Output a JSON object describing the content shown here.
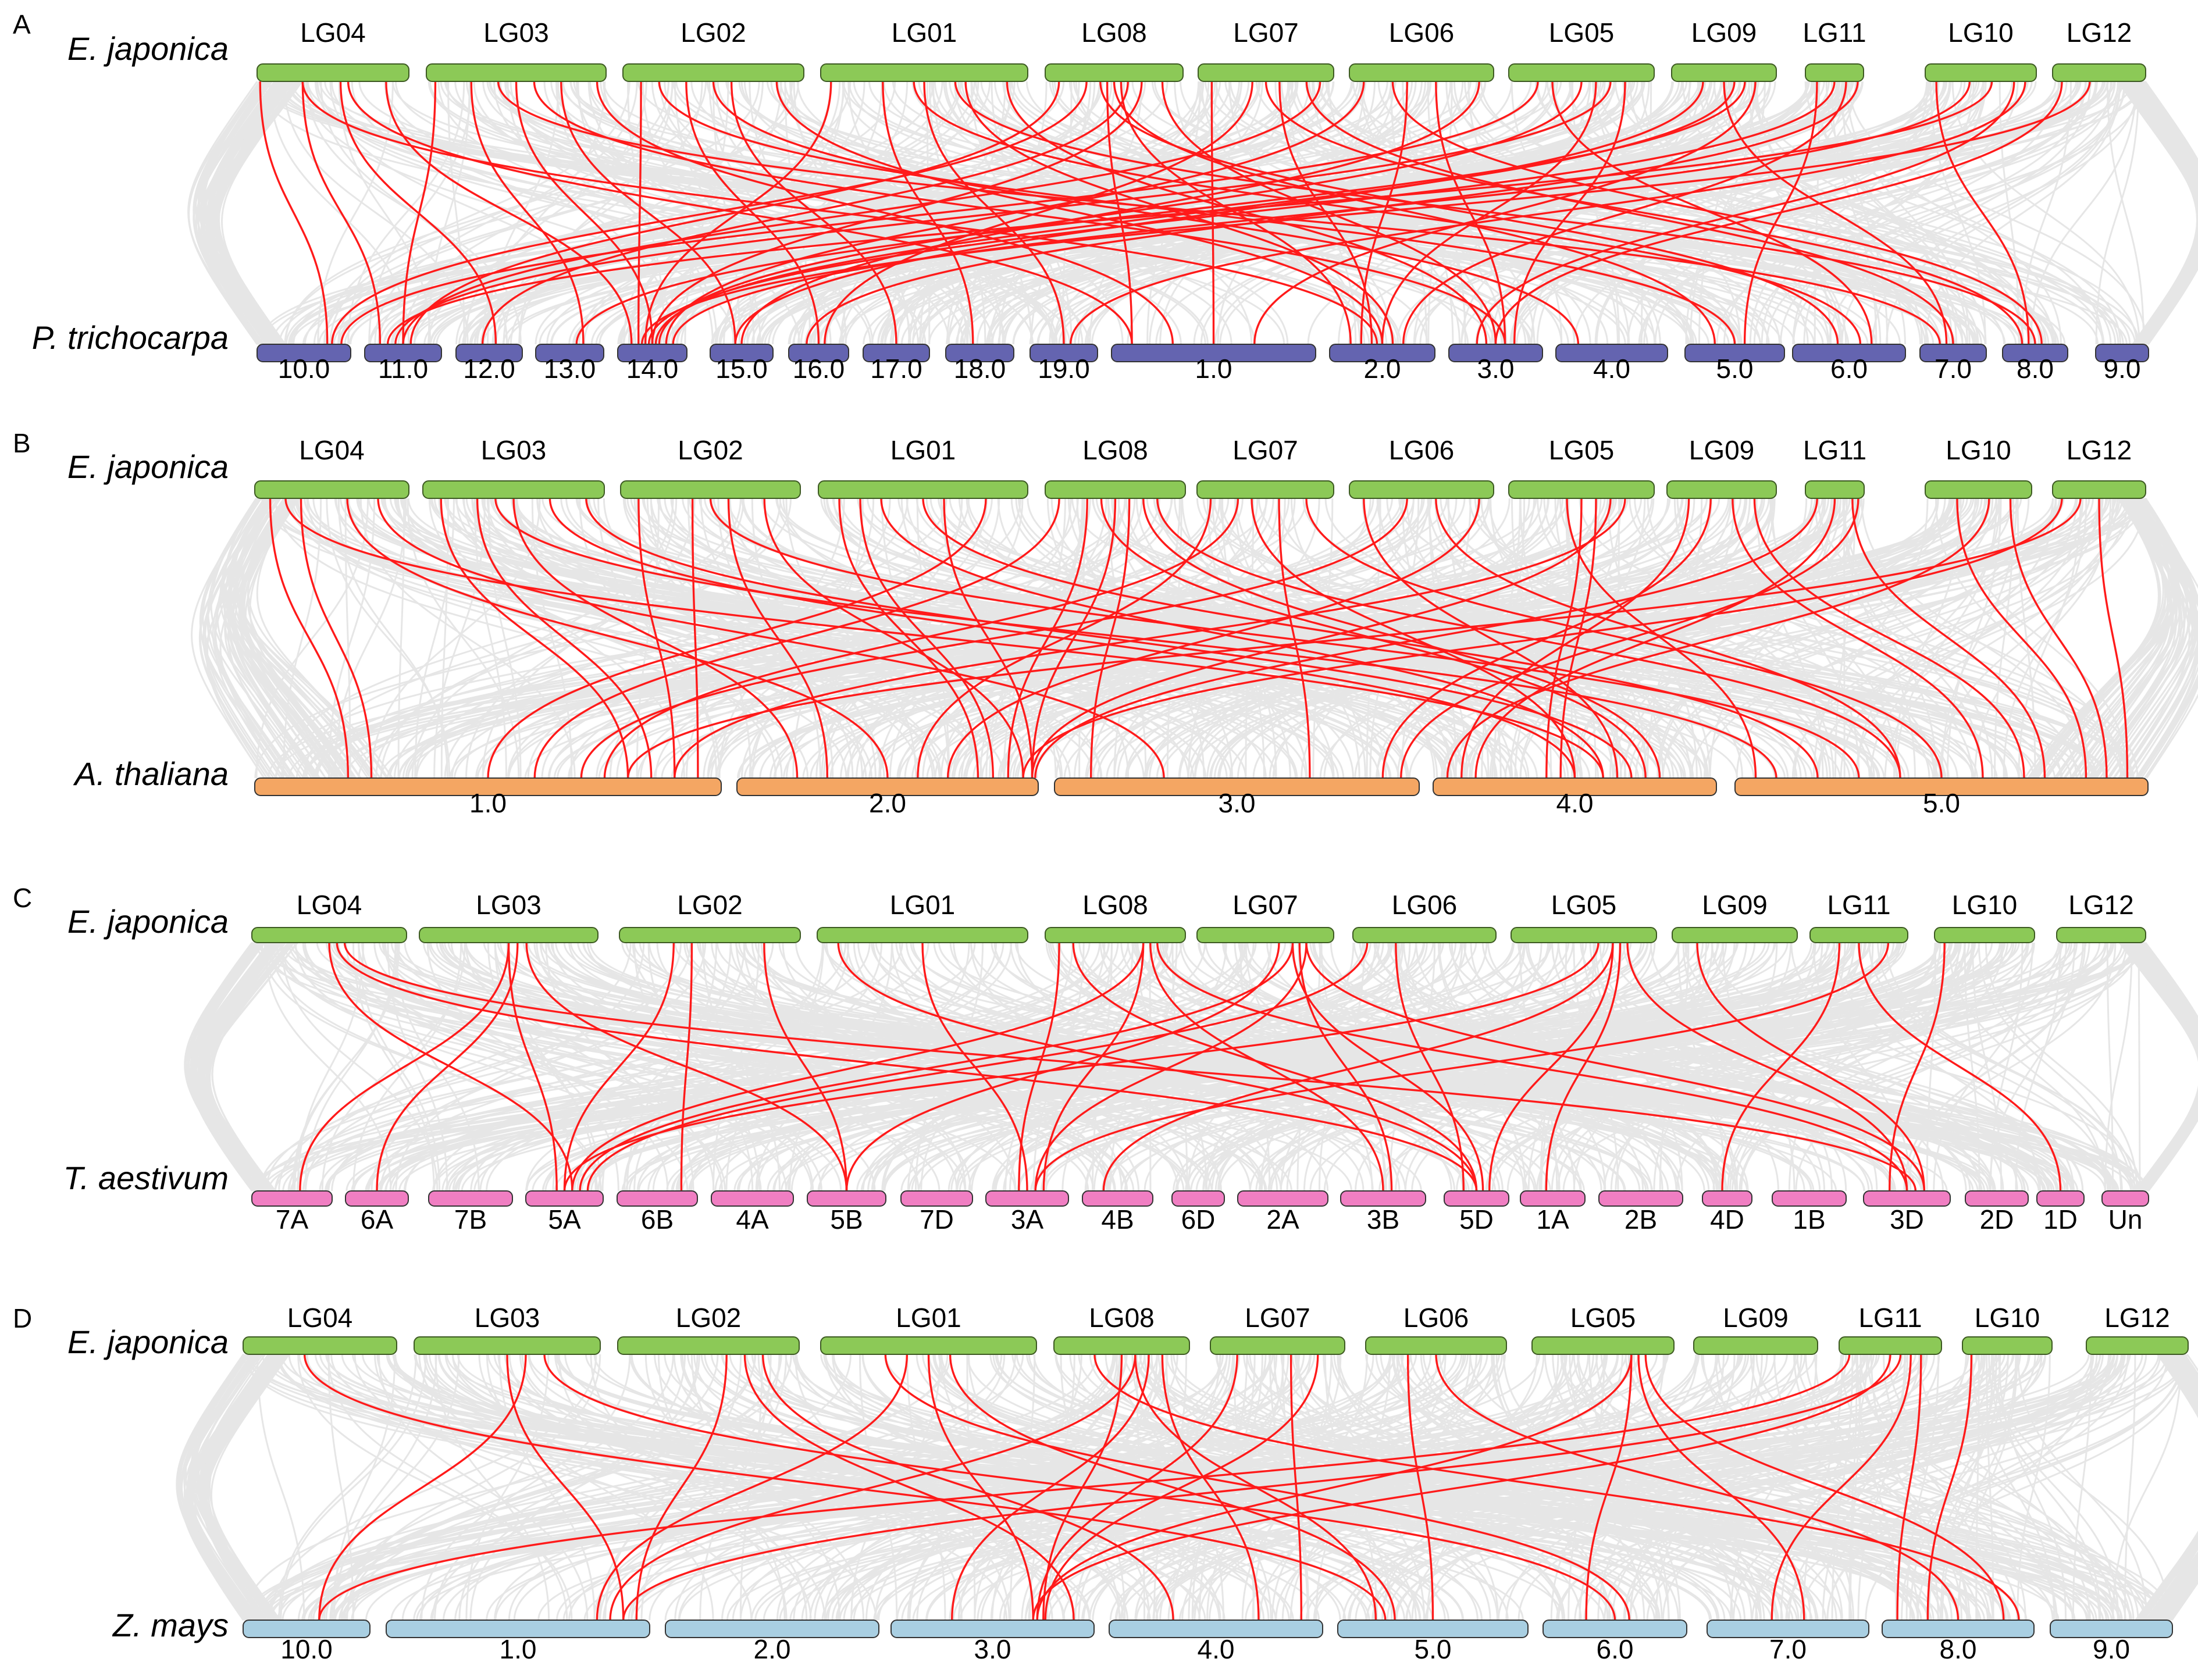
{
  "figure": {
    "description_hidden": true
  },
  "colors": {
    "background": "#ffffff",
    "gray_links": "#e4e4e4",
    "red_links": "#ff1a1a",
    "ej_chr": "#8cc957",
    "pt_chr": "#6464b0",
    "at_chr": "#f4a663",
    "ta_chr": "#f07ec2",
    "zm_chr": "#a9cfe2"
  },
  "panels": [
    {
      "letter": "A",
      "top": {
        "species": "E. japonica",
        "color_key": "ej_chr",
        "chromosomes": [
          "LG04",
          "LG03",
          "LG02",
          "LG01",
          "LG08",
          "LG07",
          "LG06",
          "LG05",
          "LG09",
          "LG11",
          "LG10",
          "LG12"
        ]
      },
      "bottom": {
        "species": "P. trichocarpa",
        "color_key": "pt_chr",
        "chromosomes": [
          "10.0",
          "11.0",
          "12.0",
          "13.0",
          "14.0",
          "15.0",
          "16.0",
          "17.0",
          "18.0",
          "19.0",
          "1.0",
          "2.0",
          "3.0",
          "4.0",
          "5.0",
          "6.0",
          "7.0",
          "8.0",
          "9.0"
        ]
      }
    },
    {
      "letter": "B",
      "top": {
        "species": "E. japonica",
        "color_key": "ej_chr",
        "chromosomes": [
          "LG04",
          "LG03",
          "LG02",
          "LG01",
          "LG08",
          "LG07",
          "LG06",
          "LG05",
          "LG09",
          "LG11",
          "LG10",
          "LG12"
        ]
      },
      "bottom": {
        "species": "A. thaliana",
        "color_key": "at_chr",
        "chromosomes": [
          "1.0",
          "2.0",
          "3.0",
          "4.0",
          "5.0"
        ]
      }
    },
    {
      "letter": "C",
      "top": {
        "species": "E. japonica",
        "color_key": "ej_chr",
        "chromosomes": [
          "LG04",
          "LG03",
          "LG02",
          "LG01",
          "LG08",
          "LG07",
          "LG06",
          "LG05",
          "LG09",
          "LG11",
          "LG10",
          "LG12"
        ]
      },
      "bottom": {
        "species": "T. aestivum",
        "color_key": "ta_chr",
        "chromosomes": [
          "7A",
          "6A",
          "7B",
          "5A",
          "6B",
          "4A",
          "5B",
          "7D",
          "3A",
          "4B",
          "6D",
          "2A",
          "3B",
          "5D",
          "1A",
          "2B",
          "4D",
          "1B",
          "3D",
          "2D",
          "1D",
          "Un"
        ]
      }
    },
    {
      "letter": "D",
      "top": {
        "species": "E. japonica",
        "color_key": "ej_chr",
        "chromosomes": [
          "LG04",
          "LG03",
          "LG02",
          "LG01",
          "LG08",
          "LG07",
          "LG06",
          "LG05",
          "LG09",
          "LG11",
          "LG10",
          "LG12"
        ]
      },
      "bottom": {
        "species": "Z. mays",
        "color_key": "zm_chr",
        "chromosomes": [
          "10.0",
          "1.0",
          "2.0",
          "3.0",
          "4.0",
          "5.0",
          "6.0",
          "7.0",
          "8.0",
          "9.0"
        ]
      }
    }
  ]
}
